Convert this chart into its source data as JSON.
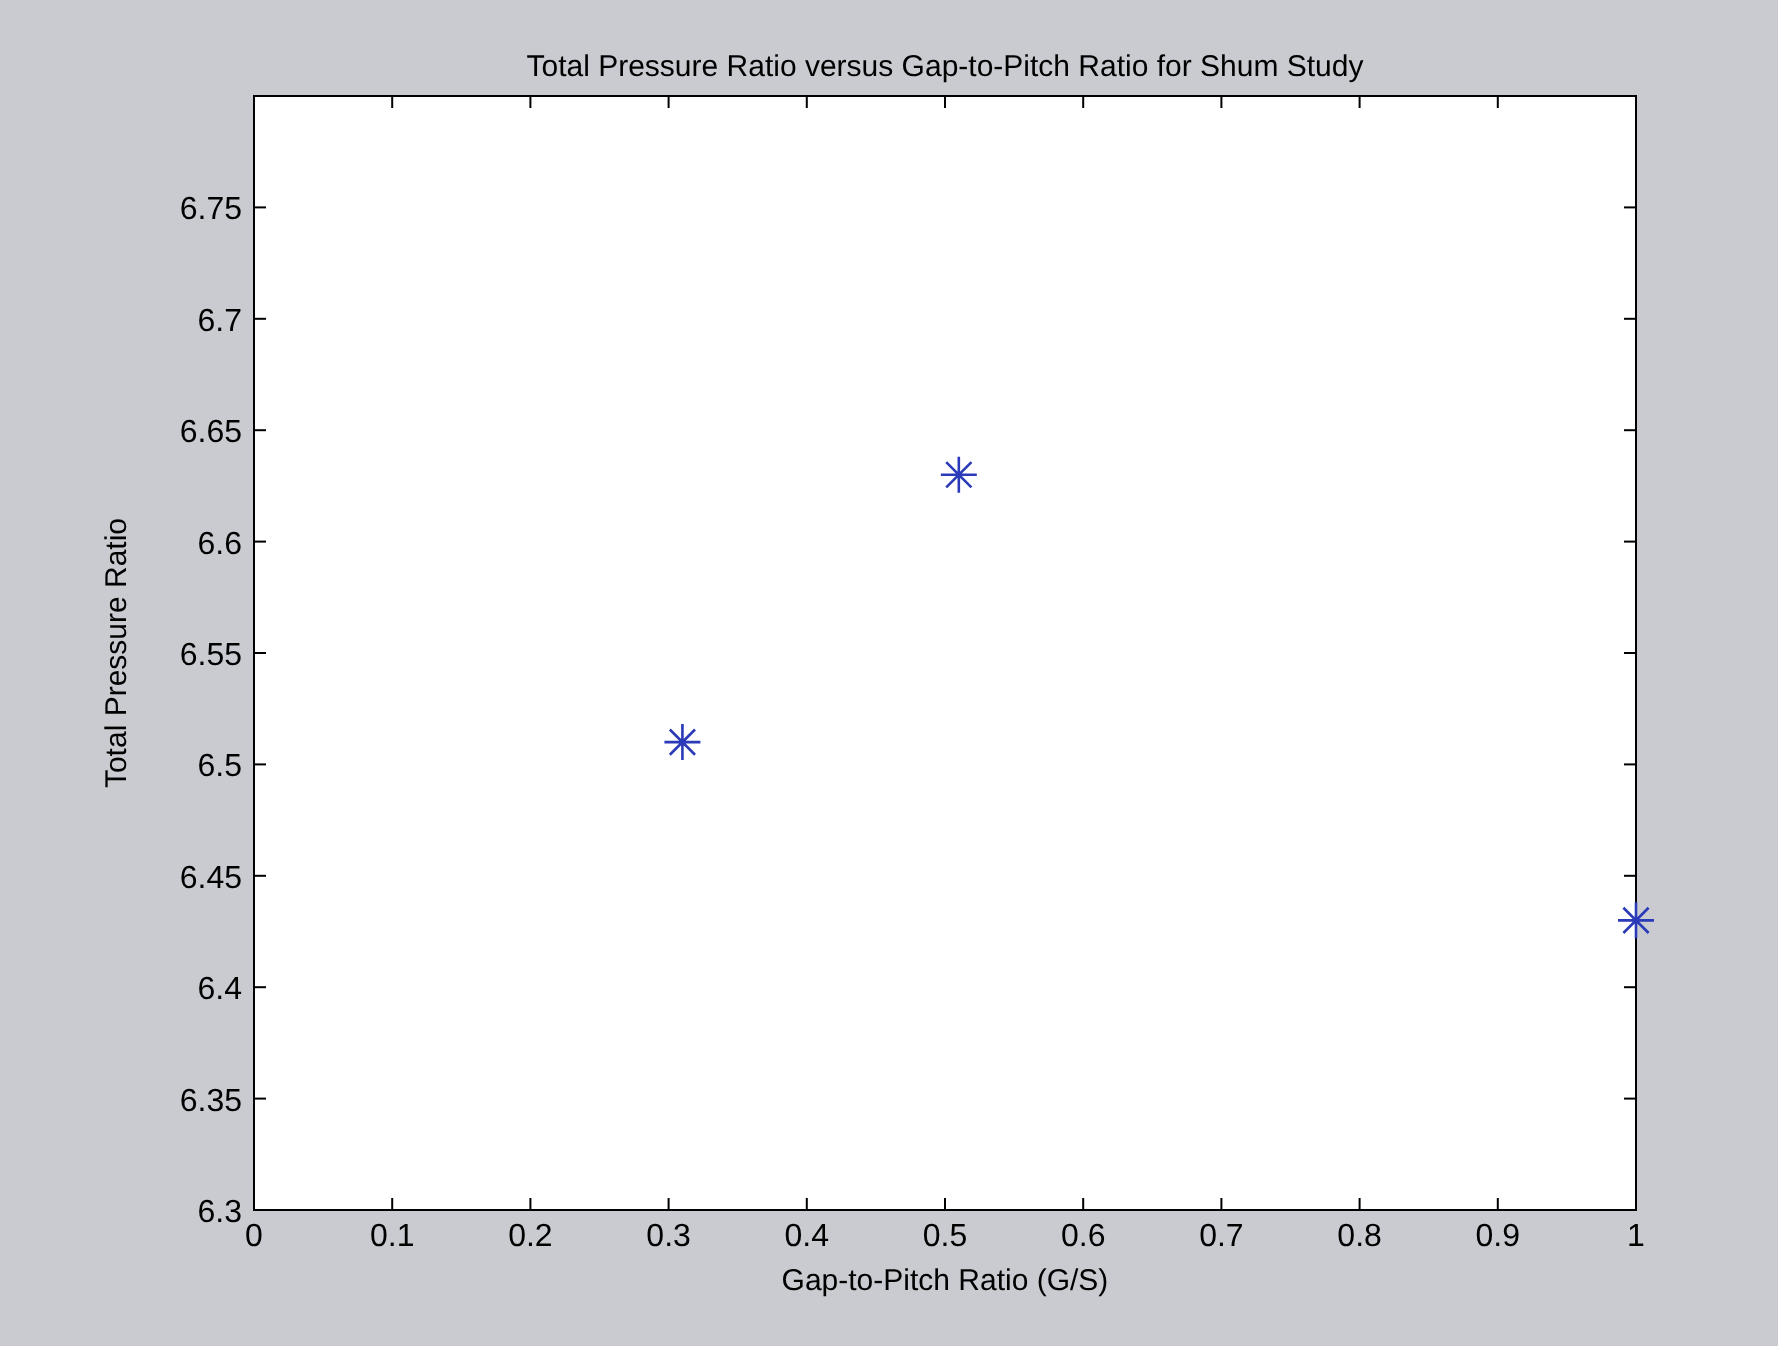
{
  "chart_data": {
    "type": "scatter",
    "title": "Total Pressure Ratio versus Gap-to-Pitch Ratio for Shum Study",
    "xlabel": "Gap-to-Pitch Ratio (G/S)",
    "ylabel": "Total Pressure Ratio",
    "x": [
      0.31,
      0.51,
      1.0
    ],
    "series": [
      {
        "color": "#2a3ab8",
        "values": [
          6.51,
          6.63,
          6.43
        ]
      }
    ],
    "xlim": [
      0,
      1
    ],
    "xticks": [
      0,
      0.1,
      0.2,
      0.3,
      0.4,
      0.5,
      0.6,
      0.7,
      0.8,
      0.9,
      1
    ],
    "ylim": [
      6.3,
      6.8
    ],
    "yticks": [
      6.3,
      6.35,
      6.4,
      6.45,
      6.5,
      6.55,
      6.6,
      6.65,
      6.7,
      6.75
    ],
    "marker": "cross",
    "grid": false
  }
}
